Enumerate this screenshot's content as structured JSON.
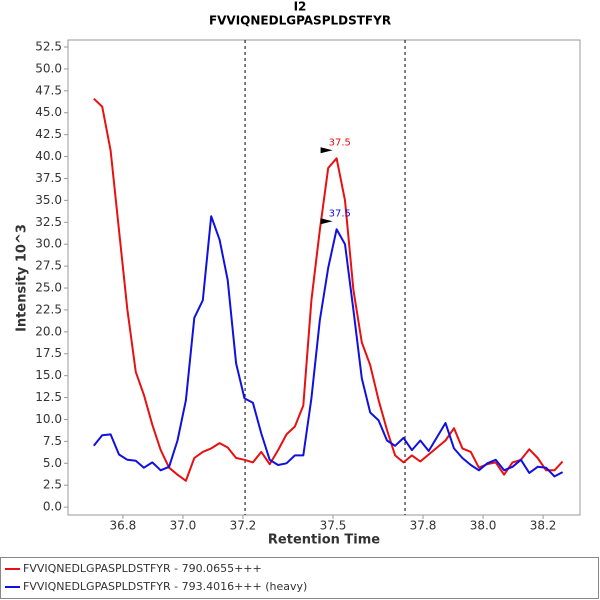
{
  "chart_data": {
    "type": "line",
    "title": "I2",
    "subtitle": "FVVIQNEDLGPASPLDSTFYR",
    "x_label": "Retention Time",
    "y_label": "Intensity 10^3",
    "xlim": [
      36.617,
      38.323
    ],
    "ylim": [
      -0.9,
      53.3
    ],
    "xticks": [
      36.8,
      {
        "value": 37.0,
        "label": "37.0"
      },
      37.2,
      37.5,
      37.8,
      {
        "value": 38.0,
        "label": "38.0"
      },
      38.2
    ],
    "yticks": [
      {
        "value": 0,
        "label": "0.0"
      },
      2.5,
      {
        "value": 5,
        "label": "5.0"
      },
      7.5,
      {
        "value": 10,
        "label": "10.0"
      },
      12.5,
      {
        "value": 15,
        "label": "15.0"
      },
      17.5,
      {
        "value": 20,
        "label": "20.0"
      },
      22.5,
      {
        "value": 25,
        "label": "25.0"
      },
      27.5,
      {
        "value": 30,
        "label": "30.0"
      },
      32.5,
      {
        "value": 35,
        "label": "35.0"
      },
      37.5,
      {
        "value": 40,
        "label": "40.0"
      },
      42.5,
      {
        "value": 45,
        "label": "45.0"
      },
      47.5,
      {
        "value": 50,
        "label": "50.0"
      },
      52.5
    ],
    "vlines": [
      37.207,
      37.74
    ],
    "x": [
      36.703,
      36.731,
      36.759,
      36.787,
      36.815,
      36.843,
      36.87,
      36.898,
      36.926,
      36.954,
      36.982,
      37.01,
      37.038,
      37.066,
      37.094,
      37.122,
      37.149,
      37.177,
      37.205,
      37.233,
      37.261,
      37.289,
      37.317,
      37.345,
      37.373,
      37.401,
      37.428,
      37.456,
      37.484,
      37.512,
      37.54,
      37.568,
      37.596,
      37.624,
      37.652,
      37.68,
      37.707,
      37.735,
      37.763,
      37.791,
      37.819,
      37.847,
      37.875,
      37.903,
      37.931,
      37.959,
      37.986,
      38.014,
      38.042,
      38.07,
      38.098,
      38.126,
      38.154,
      38.182,
      38.21,
      38.238,
      38.265
    ],
    "series": [
      {
        "name": "FVVIQNEDLGPASPLDSTFYR - 790.0655+++",
        "color": "#e81010",
        "peak_label": "37.5",
        "values": [
          46.6,
          45.7,
          40.7,
          31.6,
          22.5,
          15.4,
          12.8,
          9.4,
          6.5,
          4.5,
          3.7,
          3.0,
          5.6,
          6.3,
          6.7,
          7.3,
          6.8,
          5.6,
          5.4,
          5.1,
          6.3,
          4.9,
          6.5,
          8.3,
          9.2,
          11.6,
          23.6,
          31.6,
          38.7,
          39.8,
          35.0,
          24.8,
          18.8,
          16.2,
          12.2,
          8.8,
          5.9,
          5.1,
          5.9,
          5.2,
          6.0,
          6.8,
          7.6,
          9.0,
          6.7,
          6.3,
          4.5,
          4.9,
          5.1,
          3.7,
          5.1,
          5.4,
          6.6,
          5.6,
          4.2,
          4.2,
          5.2
        ]
      },
      {
        "name": "FVVIQNEDLGPASPLDSTFYR - 793.4016+++ (heavy)",
        "color": "#1010e0",
        "peak_label": "37.5",
        "values": [
          7.0,
          8.2,
          8.3,
          6.0,
          5.4,
          5.3,
          4.5,
          5.1,
          4.2,
          4.6,
          7.6,
          12.2,
          21.6,
          23.6,
          33.2,
          30.5,
          25.9,
          16.4,
          12.4,
          11.9,
          8.4,
          5.4,
          4.8,
          5.0,
          5.9,
          5.9,
          12.4,
          21.3,
          27.3,
          31.7,
          30.0,
          22.5,
          14.7,
          10.8,
          9.9,
          7.6,
          7.0,
          7.9,
          6.5,
          7.6,
          6.4,
          8.0,
          9.6,
          6.7,
          5.6,
          4.8,
          4.2,
          5.0,
          5.4,
          4.2,
          4.6,
          5.4,
          3.9,
          4.6,
          4.5,
          3.5,
          4.0
        ]
      }
    ]
  }
}
